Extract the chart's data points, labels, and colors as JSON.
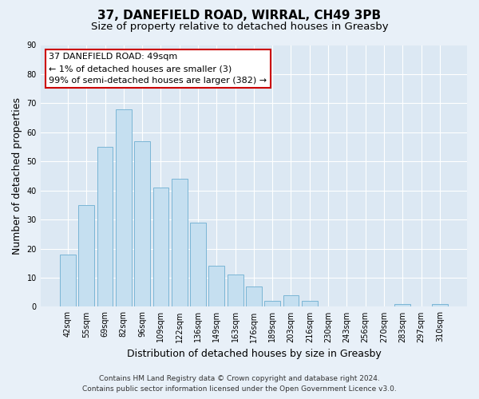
{
  "title": "37, DANEFIELD ROAD, WIRRAL, CH49 3PB",
  "subtitle": "Size of property relative to detached houses in Greasby",
  "xlabel": "Distribution of detached houses by size in Greasby",
  "ylabel": "Number of detached properties",
  "categories": [
    "42sqm",
    "55sqm",
    "69sqm",
    "82sqm",
    "96sqm",
    "109sqm",
    "122sqm",
    "136sqm",
    "149sqm",
    "163sqm",
    "176sqm",
    "189sqm",
    "203sqm",
    "216sqm",
    "230sqm",
    "243sqm",
    "256sqm",
    "270sqm",
    "283sqm",
    "297sqm",
    "310sqm"
  ],
  "values": [
    18,
    35,
    55,
    68,
    57,
    41,
    44,
    29,
    14,
    11,
    7,
    2,
    4,
    2,
    0,
    0,
    0,
    0,
    1,
    0,
    1
  ],
  "bar_color": "#c5dff0",
  "bar_edge_color": "#7ab5d5",
  "ylim": [
    0,
    90
  ],
  "yticks": [
    0,
    10,
    20,
    30,
    40,
    50,
    60,
    70,
    80,
    90
  ],
  "annotation_title": "37 DANEFIELD ROAD: 49sqm",
  "annotation_line1": "← 1% of detached houses are smaller (3)",
  "annotation_line2": "99% of semi-detached houses are larger (382) →",
  "annotation_box_facecolor": "#ffffff",
  "annotation_box_edgecolor": "#cc0000",
  "footer1": "Contains HM Land Registry data © Crown copyright and database right 2024.",
  "footer2": "Contains public sector information licensed under the Open Government Licence v3.0.",
  "bg_color": "#e8f0f8",
  "plot_bg_color": "#dce8f3",
  "grid_color": "#ffffff",
  "title_fontsize": 11,
  "subtitle_fontsize": 9.5,
  "axis_label_fontsize": 9,
  "tick_fontsize": 7,
  "footer_fontsize": 6.5,
  "ann_fontsize": 8
}
